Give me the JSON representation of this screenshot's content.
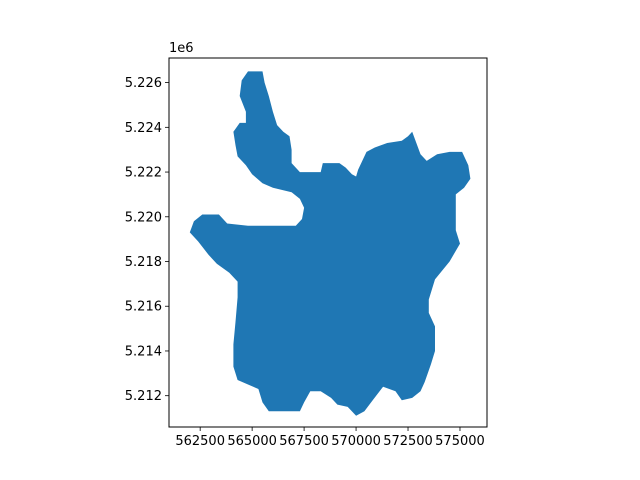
{
  "chart_data": {
    "type": "area",
    "title": "",
    "xlabel": "",
    "ylabel": "",
    "fill_color": "#1f77b4",
    "background_color": "#ffffff",
    "grid": false,
    "xlim": [
      561000,
      576300
    ],
    "ylim": [
      5210600,
      5227100
    ],
    "y_offset_label": "1e6",
    "x_ticks": [
      {
        "value": 562500,
        "label": "562500"
      },
      {
        "value": 565000,
        "label": "565000"
      },
      {
        "value": 567500,
        "label": "567500"
      },
      {
        "value": 570000,
        "label": "570000"
      },
      {
        "value": 572500,
        "label": "572500"
      },
      {
        "value": 575000,
        "label": "575000"
      }
    ],
    "y_ticks": [
      {
        "value": 5212000,
        "label": "5.212"
      },
      {
        "value": 5214000,
        "label": "5.214"
      },
      {
        "value": 5216000,
        "label": "5.216"
      },
      {
        "value": 5218000,
        "label": "5.218"
      },
      {
        "value": 5220000,
        "label": "5.220"
      },
      {
        "value": 5222000,
        "label": "5.222"
      },
      {
        "value": 5224000,
        "label": "5.224"
      },
      {
        "value": 5226000,
        "label": "5.226"
      }
    ],
    "polygon": [
      [
        564800,
        5226500
      ],
      [
        565500,
        5226500
      ],
      [
        565600,
        5226000
      ],
      [
        565800,
        5225400
      ],
      [
        566000,
        5224700
      ],
      [
        566200,
        5224100
      ],
      [
        566500,
        5223800
      ],
      [
        566800,
        5223600
      ],
      [
        566900,
        5223000
      ],
      [
        566900,
        5222400
      ],
      [
        567300,
        5222000
      ],
      [
        568300,
        5222000
      ],
      [
        568400,
        5222400
      ],
      [
        569200,
        5222400
      ],
      [
        569500,
        5222200
      ],
      [
        569800,
        5221900
      ],
      [
        570000,
        5221800
      ],
      [
        570100,
        5222100
      ],
      [
        570500,
        5222900
      ],
      [
        570900,
        5223100
      ],
      [
        571500,
        5223300
      ],
      [
        572200,
        5223400
      ],
      [
        572500,
        5223600
      ],
      [
        572700,
        5223800
      ],
      [
        573100,
        5222800
      ],
      [
        573400,
        5222500
      ],
      [
        573900,
        5222800
      ],
      [
        574500,
        5222900
      ],
      [
        575100,
        5222900
      ],
      [
        575400,
        5222300
      ],
      [
        575500,
        5221700
      ],
      [
        575200,
        5221300
      ],
      [
        574800,
        5221000
      ],
      [
        574800,
        5219400
      ],
      [
        575000,
        5218800
      ],
      [
        574500,
        5218000
      ],
      [
        573800,
        5217200
      ],
      [
        573500,
        5216300
      ],
      [
        573500,
        5215700
      ],
      [
        573800,
        5215100
      ],
      [
        573800,
        5214000
      ],
      [
        573600,
        5213400
      ],
      [
        573300,
        5212600
      ],
      [
        573100,
        5212200
      ],
      [
        572700,
        5211900
      ],
      [
        572200,
        5211800
      ],
      [
        571900,
        5212200
      ],
      [
        571300,
        5212400
      ],
      [
        570800,
        5211800
      ],
      [
        570400,
        5211300
      ],
      [
        570000,
        5211100
      ],
      [
        569600,
        5211500
      ],
      [
        569100,
        5211600
      ],
      [
        568800,
        5211900
      ],
      [
        568300,
        5212200
      ],
      [
        567800,
        5212200
      ],
      [
        567500,
        5211700
      ],
      [
        567300,
        5211300
      ],
      [
        566500,
        5211300
      ],
      [
        565800,
        5211300
      ],
      [
        565500,
        5211700
      ],
      [
        565300,
        5212300
      ],
      [
        564800,
        5212500
      ],
      [
        564300,
        5212700
      ],
      [
        564100,
        5213300
      ],
      [
        564100,
        5214300
      ],
      [
        564200,
        5215300
      ],
      [
        564300,
        5216400
      ],
      [
        564300,
        5217100
      ],
      [
        563900,
        5217500
      ],
      [
        563300,
        5217900
      ],
      [
        562900,
        5218300
      ],
      [
        562400,
        5218900
      ],
      [
        562000,
        5219300
      ],
      [
        562200,
        5219800
      ],
      [
        562600,
        5220100
      ],
      [
        563400,
        5220100
      ],
      [
        563800,
        5219700
      ],
      [
        564800,
        5219600
      ],
      [
        567100,
        5219600
      ],
      [
        567400,
        5219900
      ],
      [
        567500,
        5220400
      ],
      [
        567300,
        5220800
      ],
      [
        566900,
        5221100
      ],
      [
        566000,
        5221300
      ],
      [
        565500,
        5221500
      ],
      [
        565000,
        5221900
      ],
      [
        564700,
        5222300
      ],
      [
        564300,
        5222700
      ],
      [
        564200,
        5223200
      ],
      [
        564100,
        5223800
      ],
      [
        564400,
        5224200
      ],
      [
        564700,
        5224200
      ],
      [
        564700,
        5224700
      ],
      [
        564400,
        5225400
      ],
      [
        564500,
        5226100
      ]
    ]
  }
}
